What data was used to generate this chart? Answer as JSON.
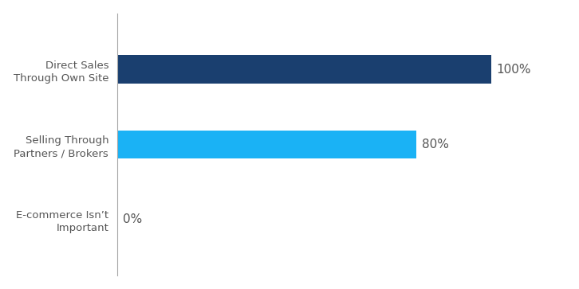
{
  "categories": [
    "E-commerce Isn’t\nImportant",
    "Selling Through\nPartners / Brokers",
    "Direct Sales\nThrough Own Site"
  ],
  "values": [
    0,
    80,
    100
  ],
  "bar_color_list": [
    "#ffffff",
    "#1ab2f5",
    "#1a3f6f"
  ],
  "labels": [
    "0%",
    "80%",
    "100%"
  ],
  "xlim": [
    0,
    120
  ],
  "ylim": [
    -0.75,
    2.75
  ],
  "background_color": "#ffffff",
  "label_fontsize": 11,
  "tick_fontsize": 9.5,
  "bar_height": 0.38,
  "label_color": "#555555",
  "spine_color": "#aaaaaa"
}
